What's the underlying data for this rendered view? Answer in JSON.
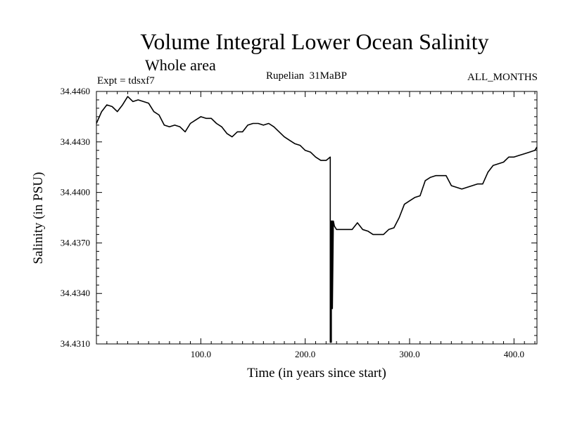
{
  "chart_data": {
    "type": "line",
    "title": "Volume Integral Lower Ocean Salinity",
    "subtitle": "Whole area",
    "experiment": "Expt = tdsxf7",
    "period": "Rupelian  31MaBP",
    "months": "ALL_MONTHS",
    "xlabel": "Time (in years since start)",
    "ylabel": "Salinity (in PSU)",
    "xlim": [
      0,
      422
    ],
    "ylim": [
      34.431,
      34.446
    ],
    "x_ticks": [
      100,
      200,
      300,
      400
    ],
    "x_tick_labels": [
      "100.0",
      "200.0",
      "300.0",
      "400.0"
    ],
    "y_ticks": [
      34.431,
      34.434,
      34.437,
      34.44,
      34.443,
      34.446
    ],
    "y_tick_labels": [
      "34.4310",
      "34.4340",
      "34.4370",
      "34.4400",
      "34.4430",
      "34.4460"
    ],
    "series": [
      {
        "name": "salinity",
        "x": [
          0,
          5,
          10,
          15,
          20,
          25,
          30,
          35,
          40,
          45,
          50,
          55,
          60,
          65,
          70,
          75,
          80,
          85,
          90,
          95,
          100,
          105,
          110,
          115,
          120,
          125,
          130,
          135,
          140,
          145,
          150,
          155,
          160,
          165,
          170,
          175,
          180,
          185,
          190,
          195,
          200,
          205,
          210,
          215,
          220,
          222,
          224,
          224,
          225,
          225,
          226,
          226,
          227,
          228,
          230,
          235,
          240,
          245,
          250,
          255,
          260,
          265,
          270,
          275,
          280,
          285,
          290,
          295,
          300,
          305,
          310,
          315,
          320,
          325,
          330,
          335,
          340,
          345,
          350,
          355,
          360,
          365,
          370,
          375,
          380,
          385,
          390,
          395,
          400,
          405,
          410,
          415,
          420,
          422
        ],
        "y": [
          34.4441,
          34.4448,
          34.4452,
          34.4451,
          34.4448,
          34.4452,
          34.4457,
          34.4454,
          34.4455,
          34.4454,
          34.4453,
          34.4448,
          34.4446,
          34.444,
          34.4439,
          34.444,
          34.4439,
          34.4436,
          34.4441,
          34.4443,
          34.4445,
          34.4444,
          34.4444,
          34.4441,
          34.4439,
          34.4435,
          34.4433,
          34.4436,
          34.4436,
          34.444,
          34.4441,
          34.4441,
          34.444,
          34.4441,
          34.4439,
          34.4436,
          34.4433,
          34.4431,
          34.4429,
          34.4428,
          34.4425,
          34.4424,
          34.4421,
          34.4419,
          34.4419,
          34.442,
          34.4421,
          34.4311,
          34.4311,
          34.4383,
          34.4383,
          34.4331,
          34.4383,
          34.438,
          34.4378,
          34.4378,
          34.4378,
          34.4378,
          34.4382,
          34.4378,
          34.4377,
          34.4375,
          34.4375,
          34.4375,
          34.4378,
          34.4379,
          34.4385,
          34.4393,
          34.4395,
          34.4397,
          34.4398,
          34.4407,
          34.4409,
          34.441,
          34.441,
          34.441,
          34.4404,
          34.4403,
          34.4402,
          34.4403,
          34.4404,
          34.4405,
          34.4405,
          34.4412,
          34.4416,
          34.4417,
          34.4418,
          34.4421,
          34.4421,
          34.4422,
          34.4423,
          34.4424,
          34.4425,
          34.4427
        ]
      }
    ]
  }
}
